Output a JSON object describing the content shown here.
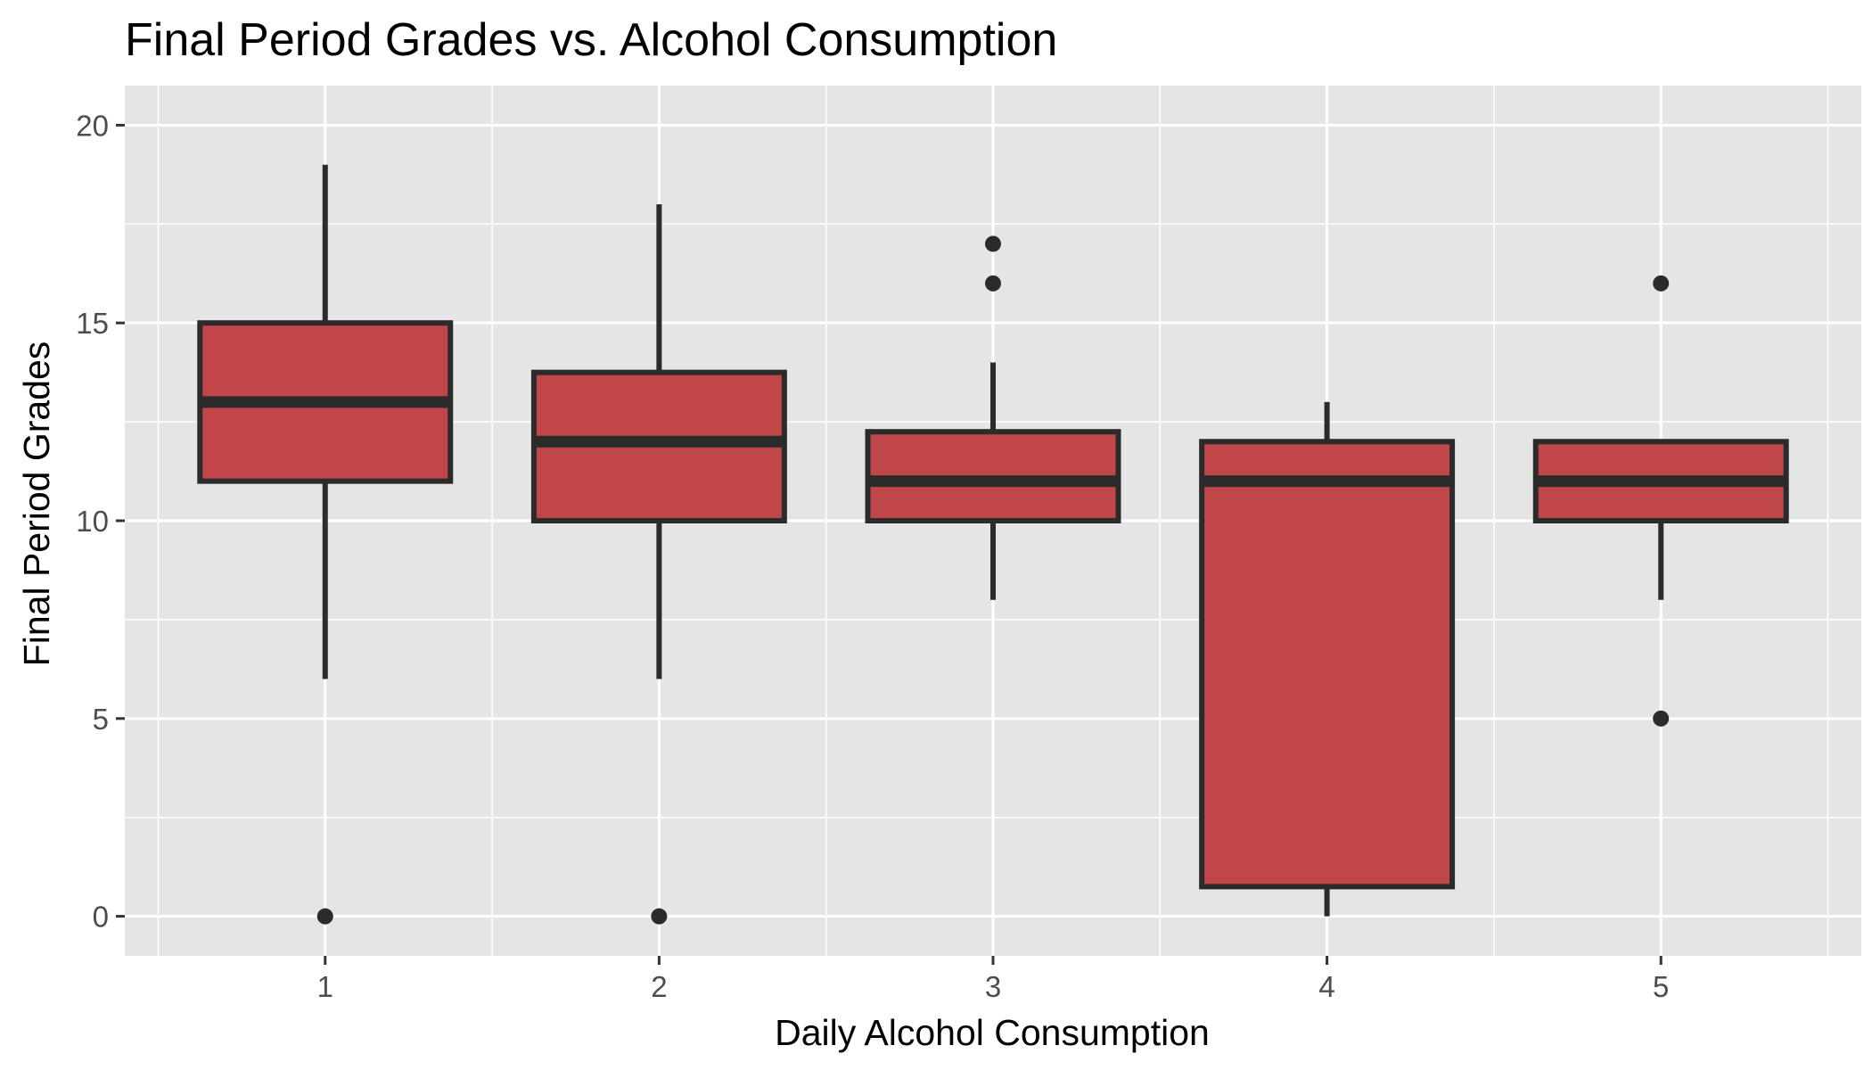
{
  "chart_data": {
    "type": "boxplot",
    "title": "Final Period Grades vs. Alcohol Consumption",
    "xlabel": "Daily Alcohol Consumption",
    "ylabel": "Final Period Grades",
    "categories": [
      "1",
      "2",
      "3",
      "4",
      "5"
    ],
    "ylim": [
      -1,
      21
    ],
    "yticks": [
      0,
      5,
      10,
      15,
      20
    ],
    "ytick_labels": [
      "0",
      "5",
      "10",
      "15",
      "20"
    ],
    "grid": true,
    "fill_color": "#c0464a",
    "line_color": "#2b2b2b",
    "panel_color": "#e5e5e5",
    "boxes": [
      {
        "category": "1",
        "whisker_low": 6,
        "q1": 11,
        "median": 13,
        "q3": 15,
        "whisker_high": 19,
        "outliers": [
          0
        ]
      },
      {
        "category": "2",
        "whisker_low": 6,
        "q1": 10,
        "median": 12,
        "q3": 13.75,
        "whisker_high": 18,
        "outliers": [
          0
        ]
      },
      {
        "category": "3",
        "whisker_low": 8,
        "q1": 10,
        "median": 11,
        "q3": 12.25,
        "whisker_high": 14,
        "outliers": [
          16,
          17
        ]
      },
      {
        "category": "4",
        "whisker_low": 0,
        "q1": 0.75,
        "median": 11,
        "q3": 12,
        "whisker_high": 13,
        "outliers": []
      },
      {
        "category": "5",
        "whisker_low": 8,
        "q1": 10,
        "median": 11,
        "q3": 12,
        "whisker_high": 12,
        "outliers": [
          5,
          16
        ]
      }
    ]
  }
}
